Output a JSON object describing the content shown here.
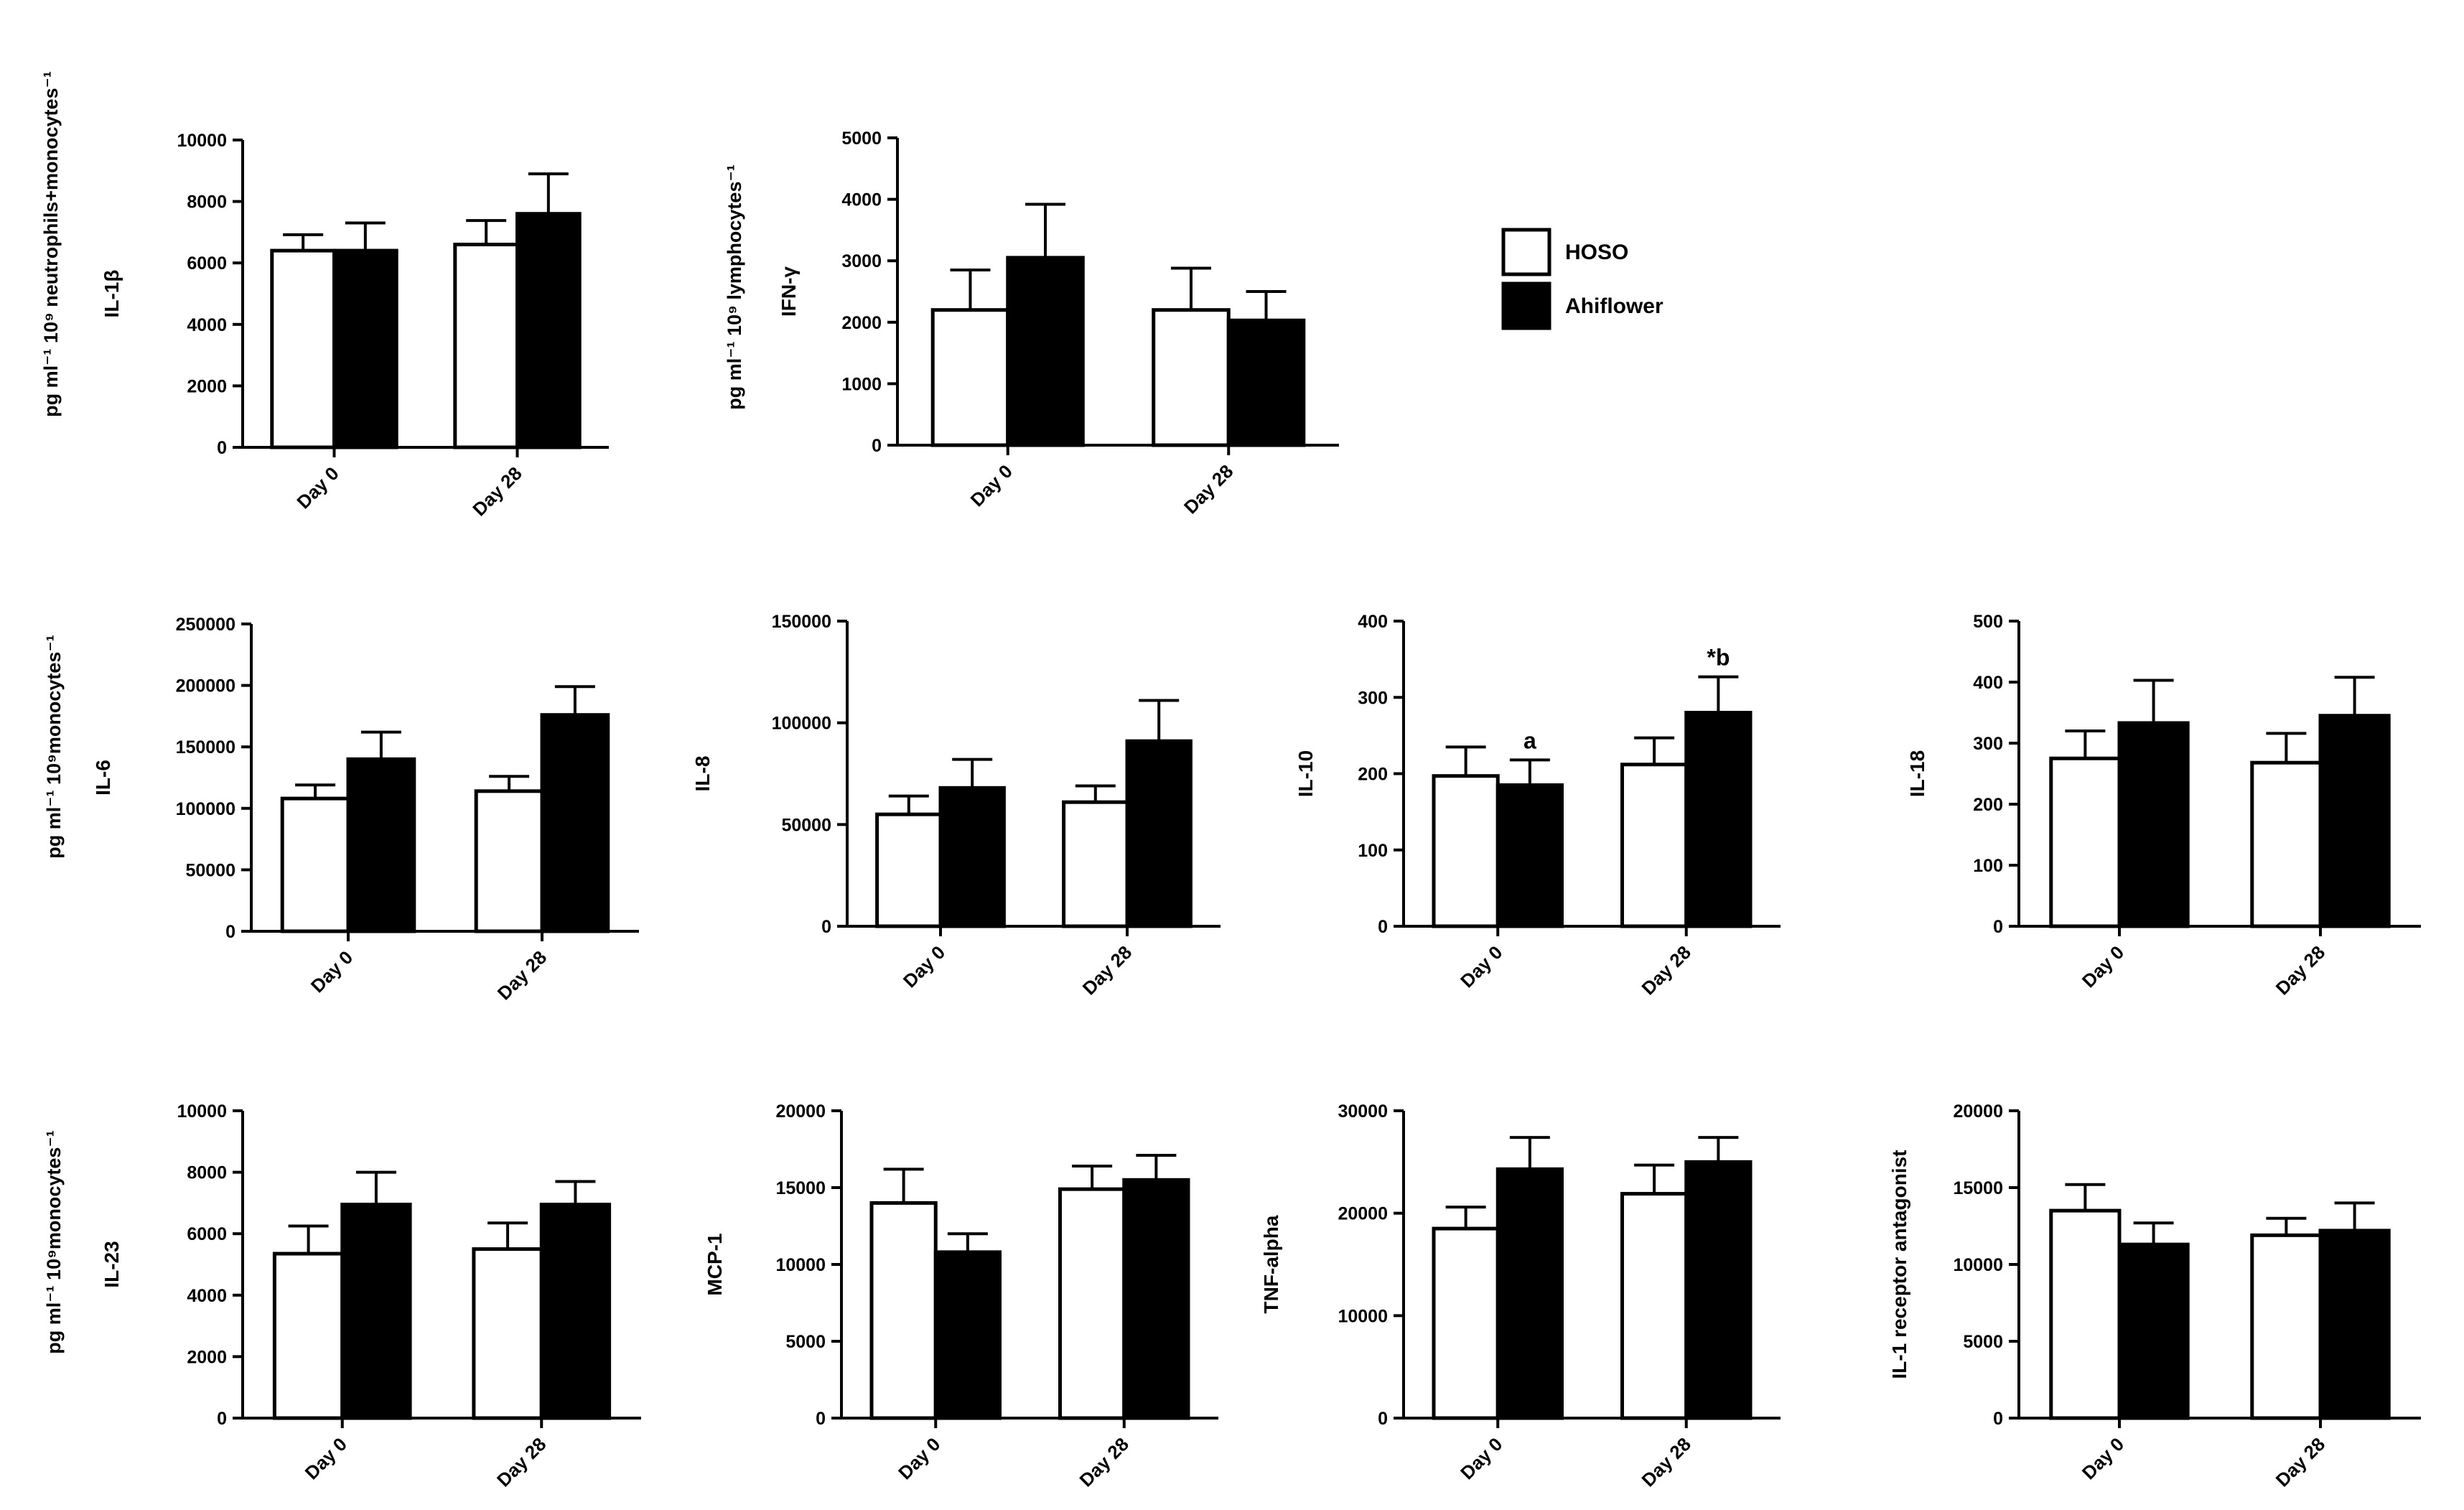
{
  "legend": {
    "items": [
      {
        "label": "HOSO",
        "color": "#ffffff"
      },
      {
        "label": "Ahiflower",
        "color": "#000000"
      }
    ]
  },
  "group_labels": [
    {
      "id": "g1",
      "text": "pg ml⁻¹ 10⁹ neutrophils+monocytes⁻¹"
    },
    {
      "id": "g2",
      "text": "pg ml⁻¹ 10⁹ lymphocytes⁻¹"
    },
    {
      "id": "g3",
      "text": "pg ml⁻¹ 10⁹monocytes⁻¹"
    },
    {
      "id": "g4",
      "text": "pg ml⁻¹ 10⁹monocytes⁻¹"
    }
  ],
  "chart_data": [
    {
      "id": "il1b",
      "type": "bar",
      "ylabel": "IL-1β",
      "categories": [
        "Day 0",
        "Day 28"
      ],
      "ylim": [
        0,
        10000
      ],
      "yticks": [
        "0",
        "2000",
        "4000",
        "6000",
        "8000",
        "10000"
      ],
      "series": [
        {
          "name": "HOSO",
          "values": [
            6400,
            6600
          ],
          "errors": [
            520,
            780
          ]
        },
        {
          "name": "Ahiflower",
          "values": [
            6400,
            7600
          ],
          "errors": [
            900,
            1300
          ]
        }
      ],
      "annotations": []
    },
    {
      "id": "ifng",
      "type": "bar",
      "ylabel": "IFN-γ",
      "categories": [
        "Day 0",
        "Day 28"
      ],
      "ylim": [
        0,
        5000
      ],
      "yticks": [
        "0",
        "1000",
        "2000",
        "3000",
        "4000",
        "5000"
      ],
      "series": [
        {
          "name": "HOSO",
          "values": [
            2200,
            2200
          ],
          "errors": [
            650,
            680
          ]
        },
        {
          "name": "Ahiflower",
          "values": [
            3050,
            2030
          ],
          "errors": [
            870,
            470
          ]
        }
      ],
      "annotations": []
    },
    {
      "id": "il6",
      "type": "bar",
      "ylabel": "IL-6",
      "categories": [
        "Day 0",
        "Day 28"
      ],
      "ylim": [
        0,
        250000
      ],
      "yticks": [
        "0",
        "50000",
        "100000",
        "150000",
        "200000",
        "250000"
      ],
      "series": [
        {
          "name": "HOSO",
          "values": [
            108000,
            114000
          ],
          "errors": [
            11000,
            12000
          ]
        },
        {
          "name": "Ahiflower",
          "values": [
            140000,
            176000
          ],
          "errors": [
            22000,
            23000
          ]
        }
      ],
      "annotations": []
    },
    {
      "id": "il8",
      "type": "bar",
      "ylabel": "IL-8",
      "categories": [
        "Day 0",
        "Day 28"
      ],
      "ylim": [
        0,
        150000
      ],
      "yticks": [
        "0",
        "50000",
        "100000",
        "150000"
      ],
      "series": [
        {
          "name": "HOSO",
          "values": [
            55000,
            61000
          ],
          "errors": [
            9000,
            8000
          ]
        },
        {
          "name": "Ahiflower",
          "values": [
            68000,
            91000
          ],
          "errors": [
            14000,
            20000
          ]
        }
      ],
      "annotations": []
    },
    {
      "id": "il10",
      "type": "bar",
      "ylabel": "IL-10",
      "categories": [
        "Day 0",
        "Day 28"
      ],
      "ylim": [
        0,
        400
      ],
      "yticks": [
        "0",
        "100",
        "200",
        "300",
        "400"
      ],
      "series": [
        {
          "name": "HOSO",
          "values": [
            197,
            212
          ],
          "errors": [
            38,
            35
          ]
        },
        {
          "name": "Ahiflower",
          "values": [
            185,
            280
          ],
          "errors": [
            33,
            47
          ]
        }
      ],
      "annotations": [
        {
          "text": "a",
          "category": 0,
          "series": 1
        },
        {
          "text": "*b",
          "category": 1,
          "series": 1
        }
      ]
    },
    {
      "id": "il18",
      "type": "bar",
      "ylabel": "IL-18",
      "categories": [
        "Day 0",
        "Day 28"
      ],
      "ylim": [
        0,
        500
      ],
      "yticks": [
        "0",
        "100",
        "200",
        "300",
        "400",
        "500"
      ],
      "series": [
        {
          "name": "HOSO",
          "values": [
            275,
            268
          ],
          "errors": [
            45,
            48
          ]
        },
        {
          "name": "Ahiflower",
          "values": [
            333,
            345
          ],
          "errors": [
            70,
            63
          ]
        }
      ],
      "annotations": []
    },
    {
      "id": "il23",
      "type": "bar",
      "ylabel": "IL-23",
      "categories": [
        "Day 0",
        "Day 28"
      ],
      "ylim": [
        0,
        10000
      ],
      "yticks": [
        "0",
        "2000",
        "4000",
        "6000",
        "8000",
        "10000"
      ],
      "series": [
        {
          "name": "HOSO",
          "values": [
            5350,
            5500
          ],
          "errors": [
            900,
            850
          ]
        },
        {
          "name": "Ahiflower",
          "values": [
            6950,
            6950
          ],
          "errors": [
            1050,
            750
          ]
        }
      ],
      "annotations": []
    },
    {
      "id": "mcp1",
      "type": "bar",
      "ylabel": "MCP-1",
      "categories": [
        "Day 0",
        "Day 28"
      ],
      "ylim": [
        0,
        20000
      ],
      "yticks": [
        "0",
        "5000",
        "10000",
        "15000",
        "20000"
      ],
      "series": [
        {
          "name": "HOSO",
          "values": [
            14000,
            14900
          ],
          "errors": [
            2200,
            1500
          ]
        },
        {
          "name": "Ahiflower",
          "values": [
            10800,
            15500
          ],
          "errors": [
            1200,
            1600
          ]
        }
      ],
      "annotations": []
    },
    {
      "id": "tnfa",
      "type": "bar",
      "ylabel": "TNF-alpha",
      "categories": [
        "Day 0",
        "Day 28"
      ],
      "ylim": [
        0,
        30000
      ],
      "yticks": [
        "0",
        "10000",
        "20000",
        "30000"
      ],
      "series": [
        {
          "name": "HOSO",
          "values": [
            18500,
            21900
          ],
          "errors": [
            2100,
            2800
          ]
        },
        {
          "name": "Ahiflower",
          "values": [
            24300,
            25000
          ],
          "errors": [
            3100,
            2400
          ]
        }
      ],
      "annotations": []
    },
    {
      "id": "il1ra",
      "type": "bar",
      "ylabel": "IL-1 receptor antagonist",
      "categories": [
        "Day 0",
        "Day 28"
      ],
      "ylim": [
        0,
        20000
      ],
      "yticks": [
        "0",
        "5000",
        "10000",
        "15000",
        "20000"
      ],
      "series": [
        {
          "name": "HOSO",
          "values": [
            13500,
            11900
          ],
          "errors": [
            1700,
            1100
          ]
        },
        {
          "name": "Ahiflower",
          "values": [
            11300,
            12200
          ],
          "errors": [
            1400,
            1800
          ]
        }
      ],
      "annotations": []
    }
  ]
}
